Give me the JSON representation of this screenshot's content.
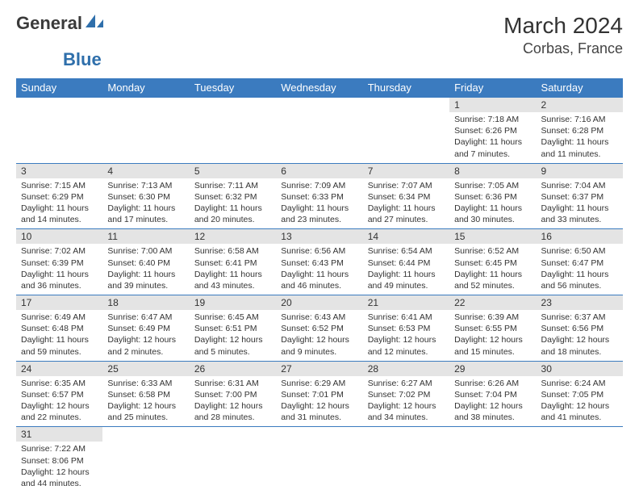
{
  "logo": {
    "text1": "General",
    "text2": "Blue",
    "color1": "#3a3a3a",
    "color2": "#2f6fab"
  },
  "header": {
    "month": "March 2024",
    "location": "Corbas, France"
  },
  "dayHeaders": [
    "Sunday",
    "Monday",
    "Tuesday",
    "Wednesday",
    "Thursday",
    "Friday",
    "Saturday"
  ],
  "colors": {
    "headerBg": "#3b7bbf",
    "headerText": "#ffffff",
    "dayNumBg": "#e4e4e4",
    "borderColor": "#3b7bbf",
    "textColor": "#333333",
    "background": "#ffffff"
  },
  "weeks": [
    [
      null,
      null,
      null,
      null,
      null,
      {
        "n": "1",
        "sr": "7:18 AM",
        "ss": "6:26 PM",
        "dl": "11 hours and 7 minutes."
      },
      {
        "n": "2",
        "sr": "7:16 AM",
        "ss": "6:28 PM",
        "dl": "11 hours and 11 minutes."
      }
    ],
    [
      {
        "n": "3",
        "sr": "7:15 AM",
        "ss": "6:29 PM",
        "dl": "11 hours and 14 minutes."
      },
      {
        "n": "4",
        "sr": "7:13 AM",
        "ss": "6:30 PM",
        "dl": "11 hours and 17 minutes."
      },
      {
        "n": "5",
        "sr": "7:11 AM",
        "ss": "6:32 PM",
        "dl": "11 hours and 20 minutes."
      },
      {
        "n": "6",
        "sr": "7:09 AM",
        "ss": "6:33 PM",
        "dl": "11 hours and 23 minutes."
      },
      {
        "n": "7",
        "sr": "7:07 AM",
        "ss": "6:34 PM",
        "dl": "11 hours and 27 minutes."
      },
      {
        "n": "8",
        "sr": "7:05 AM",
        "ss": "6:36 PM",
        "dl": "11 hours and 30 minutes."
      },
      {
        "n": "9",
        "sr": "7:04 AM",
        "ss": "6:37 PM",
        "dl": "11 hours and 33 minutes."
      }
    ],
    [
      {
        "n": "10",
        "sr": "7:02 AM",
        "ss": "6:39 PM",
        "dl": "11 hours and 36 minutes."
      },
      {
        "n": "11",
        "sr": "7:00 AM",
        "ss": "6:40 PM",
        "dl": "11 hours and 39 minutes."
      },
      {
        "n": "12",
        "sr": "6:58 AM",
        "ss": "6:41 PM",
        "dl": "11 hours and 43 minutes."
      },
      {
        "n": "13",
        "sr": "6:56 AM",
        "ss": "6:43 PM",
        "dl": "11 hours and 46 minutes."
      },
      {
        "n": "14",
        "sr": "6:54 AM",
        "ss": "6:44 PM",
        "dl": "11 hours and 49 minutes."
      },
      {
        "n": "15",
        "sr": "6:52 AM",
        "ss": "6:45 PM",
        "dl": "11 hours and 52 minutes."
      },
      {
        "n": "16",
        "sr": "6:50 AM",
        "ss": "6:47 PM",
        "dl": "11 hours and 56 minutes."
      }
    ],
    [
      {
        "n": "17",
        "sr": "6:49 AM",
        "ss": "6:48 PM",
        "dl": "11 hours and 59 minutes."
      },
      {
        "n": "18",
        "sr": "6:47 AM",
        "ss": "6:49 PM",
        "dl": "12 hours and 2 minutes."
      },
      {
        "n": "19",
        "sr": "6:45 AM",
        "ss": "6:51 PM",
        "dl": "12 hours and 5 minutes."
      },
      {
        "n": "20",
        "sr": "6:43 AM",
        "ss": "6:52 PM",
        "dl": "12 hours and 9 minutes."
      },
      {
        "n": "21",
        "sr": "6:41 AM",
        "ss": "6:53 PM",
        "dl": "12 hours and 12 minutes."
      },
      {
        "n": "22",
        "sr": "6:39 AM",
        "ss": "6:55 PM",
        "dl": "12 hours and 15 minutes."
      },
      {
        "n": "23",
        "sr": "6:37 AM",
        "ss": "6:56 PM",
        "dl": "12 hours and 18 minutes."
      }
    ],
    [
      {
        "n": "24",
        "sr": "6:35 AM",
        "ss": "6:57 PM",
        "dl": "12 hours and 22 minutes."
      },
      {
        "n": "25",
        "sr": "6:33 AM",
        "ss": "6:58 PM",
        "dl": "12 hours and 25 minutes."
      },
      {
        "n": "26",
        "sr": "6:31 AM",
        "ss": "7:00 PM",
        "dl": "12 hours and 28 minutes."
      },
      {
        "n": "27",
        "sr": "6:29 AM",
        "ss": "7:01 PM",
        "dl": "12 hours and 31 minutes."
      },
      {
        "n": "28",
        "sr": "6:27 AM",
        "ss": "7:02 PM",
        "dl": "12 hours and 34 minutes."
      },
      {
        "n": "29",
        "sr": "6:26 AM",
        "ss": "7:04 PM",
        "dl": "12 hours and 38 minutes."
      },
      {
        "n": "30",
        "sr": "6:24 AM",
        "ss": "7:05 PM",
        "dl": "12 hours and 41 minutes."
      }
    ],
    [
      {
        "n": "31",
        "sr": "7:22 AM",
        "ss": "8:06 PM",
        "dl": "12 hours and 44 minutes."
      },
      null,
      null,
      null,
      null,
      null,
      null
    ]
  ],
  "labels": {
    "sunrise": "Sunrise: ",
    "sunset": "Sunset: ",
    "daylight": "Daylight: "
  }
}
